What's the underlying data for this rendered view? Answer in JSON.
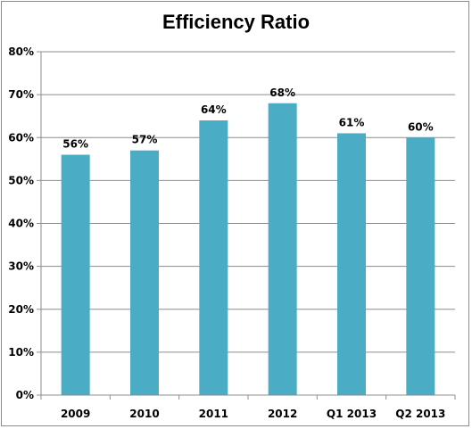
{
  "chart_data": {
    "type": "bar",
    "title": "Efficiency Ratio",
    "categories": [
      "2009",
      "2010",
      "2011",
      "2012",
      "Q1 2013",
      "Q2 2013"
    ],
    "values": [
      56,
      57,
      64,
      68,
      61,
      60
    ],
    "data_labels": [
      "56%",
      "57%",
      "64%",
      "68%",
      "61%",
      "60%"
    ],
    "ylim": [
      0,
      80
    ],
    "y_ticks": [
      0,
      10,
      20,
      30,
      40,
      50,
      60,
      70,
      80
    ],
    "y_tick_labels": [
      "0%",
      "10%",
      "20%",
      "30%",
      "40%",
      "50%",
      "60%",
      "70%",
      "80%"
    ],
    "grid": true,
    "bar_color": "#4bacc6",
    "grid_color": "#8c8c8c"
  }
}
